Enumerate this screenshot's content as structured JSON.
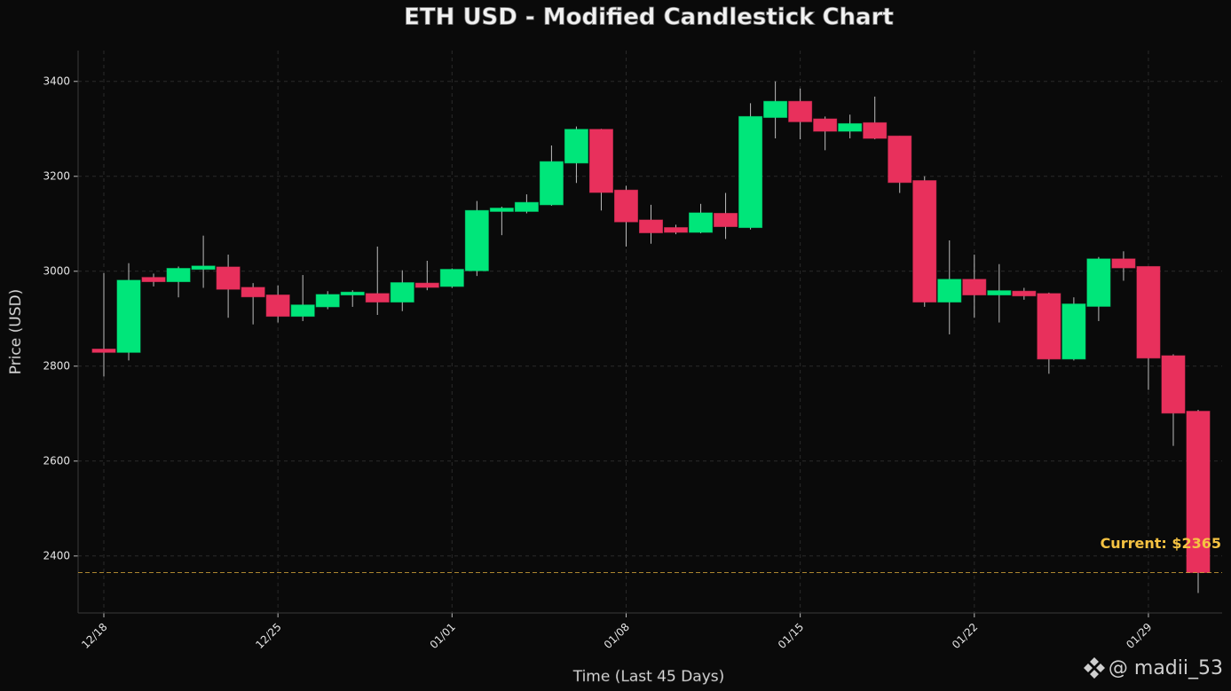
{
  "chart_data": {
    "type": "candlestick",
    "title": "ETH USD - Modified Candlestick Chart",
    "xlabel": "Time (Last 45 Days)",
    "ylabel": "Price (USD)",
    "categories": [
      "12/18",
      null,
      null,
      null,
      null,
      null,
      null,
      "12/25",
      null,
      null,
      null,
      null,
      null,
      null,
      "01/01",
      null,
      null,
      null,
      null,
      null,
      null,
      "01/08",
      null,
      null,
      null,
      null,
      null,
      null,
      "01/15",
      null,
      null,
      null,
      null,
      null,
      null,
      "01/22",
      null,
      null,
      null,
      null,
      null,
      null,
      "01/29",
      null,
      null
    ],
    "series": [
      {
        "open": [
          2836,
          2829,
          2987,
          2978,
          3004,
          3009,
          2966,
          2950,
          2905,
          2925,
          2950,
          2953,
          2935,
          2975,
          2968,
          3001,
          3126,
          3126,
          3140,
          3228,
          3299,
          3171,
          3108,
          3092,
          3082,
          3122,
          3092,
          3324,
          3358,
          3321,
          3295,
          3313,
          3285,
          3191,
          2935,
          2983,
          2950,
          2958,
          2953,
          2815,
          2926,
          3026,
          3010,
          2822,
          2705
        ],
        "high": [
          2996,
          3017,
          2995,
          3010,
          3075,
          3035,
          2975,
          2970,
          2992,
          2958,
          2960,
          3052,
          3002,
          3022,
          3006,
          3148,
          3136,
          3162,
          3265,
          3305,
          3300,
          3180,
          3140,
          3098,
          3142,
          3165,
          3354,
          3400,
          3385,
          3326,
          3330,
          3368,
          3285,
          3200,
          3065,
          3035,
          3015,
          2965,
          2955,
          2945,
          3030,
          3042,
          3010,
          2825,
          2708
        ],
        "low": [
          2778,
          2812,
          2968,
          2945,
          2965,
          2902,
          2888,
          2892,
          2895,
          2920,
          2925,
          2908,
          2916,
          2960,
          2965,
          2990,
          3076,
          3122,
          3138,
          3186,
          3128,
          3052,
          3058,
          3078,
          3080,
          3068,
          3088,
          3280,
          3278,
          3255,
          3280,
          3278,
          3165,
          2925,
          2867,
          2902,
          2892,
          2940,
          2784,
          2812,
          2895,
          2980,
          2750,
          2632,
          2322
        ],
        "close": [
          2829,
          2981,
          2978,
          3006,
          3011,
          2962,
          2946,
          2905,
          2929,
          2951,
          2956,
          2935,
          2976,
          2966,
          3004,
          3128,
          3133,
          3145,
          3231,
          3299,
          3166,
          3104,
          3081,
          3082,
          3123,
          3094,
          3326,
          3358,
          3315,
          3295,
          3311,
          3280,
          3187,
          2935,
          2983,
          2950,
          2959,
          2948,
          2815,
          2931,
          3026,
          3007,
          2817,
          2701,
          2365
        ]
      }
    ],
    "up_color": "#00e67a",
    "down_color": "#e8305c",
    "ylim": [
      2280,
      3465
    ],
    "yticks": [
      2400,
      2600,
      2800,
      3000,
      3200,
      3400
    ],
    "grid": true,
    "current_price": {
      "value": 2365,
      "label": "Current: $2365"
    },
    "watermark": "@ madii_53"
  }
}
